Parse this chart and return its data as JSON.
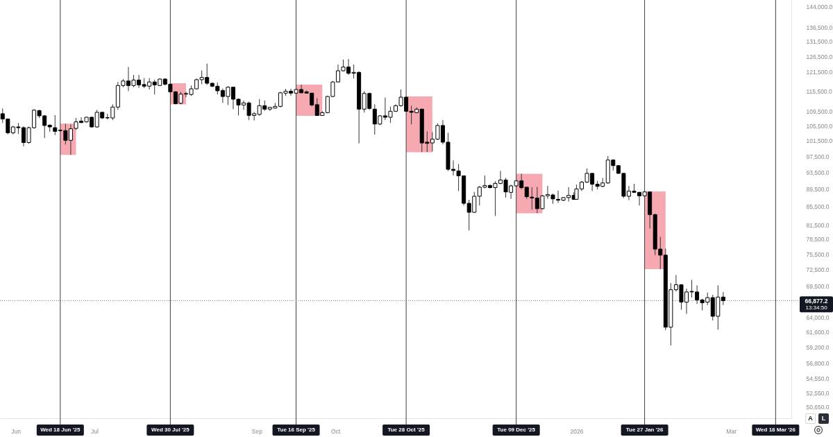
{
  "chart_data": {
    "type": "candlestick",
    "x": [
      "2025-05-27",
      "2025-05-29",
      "2025-05-31",
      "2025-06-02",
      "2025-06-04",
      "2025-06-06",
      "2025-06-08",
      "2025-06-10",
      "2025-06-12",
      "2025-06-14",
      "2025-06-16",
      "2025-06-18",
      "2025-06-20",
      "2025-06-22",
      "2025-06-24",
      "2025-06-26",
      "2025-06-28",
      "2025-06-30",
      "2025-07-02",
      "2025-07-04",
      "2025-07-06",
      "2025-07-08",
      "2025-07-10",
      "2025-07-12",
      "2025-07-14",
      "2025-07-16",
      "2025-07-18",
      "2025-07-20",
      "2025-07-22",
      "2025-07-24",
      "2025-07-26",
      "2025-07-28",
      "2025-07-30",
      "2025-08-01",
      "2025-08-03",
      "2025-08-05",
      "2025-08-07",
      "2025-08-09",
      "2025-08-11",
      "2025-08-13",
      "2025-08-15",
      "2025-08-17",
      "2025-08-19",
      "2025-08-21",
      "2025-08-23",
      "2025-08-25",
      "2025-08-27",
      "2025-08-29",
      "2025-08-31",
      "2025-09-02",
      "2025-09-04",
      "2025-09-06",
      "2025-09-08",
      "2025-09-10",
      "2025-09-12",
      "2025-09-14",
      "2025-09-16",
      "2025-09-18",
      "2025-09-20",
      "2025-09-22",
      "2025-09-24",
      "2025-09-26",
      "2025-09-28",
      "2025-09-30",
      "2025-10-02",
      "2025-10-04",
      "2025-10-06",
      "2025-10-08",
      "2025-10-10",
      "2025-10-12",
      "2025-10-14",
      "2025-10-16",
      "2025-10-18",
      "2025-10-20",
      "2025-10-22",
      "2025-10-24",
      "2025-10-26",
      "2025-10-28",
      "2025-10-30",
      "2025-11-01",
      "2025-11-03",
      "2025-11-05",
      "2025-11-07",
      "2025-11-09",
      "2025-11-11",
      "2025-11-13",
      "2025-11-15",
      "2025-11-17",
      "2025-11-19",
      "2025-11-21",
      "2025-11-23",
      "2025-11-25",
      "2025-11-27",
      "2025-11-29",
      "2025-12-01",
      "2025-12-03",
      "2025-12-05",
      "2025-12-07",
      "2025-12-09",
      "2025-12-11",
      "2025-12-13",
      "2025-12-15",
      "2025-12-17",
      "2025-12-19",
      "2025-12-21",
      "2025-12-23",
      "2025-12-25",
      "2025-12-27",
      "2025-12-29",
      "2025-12-31",
      "2026-01-01",
      "2026-01-03",
      "2026-01-05",
      "2026-01-07",
      "2026-01-09",
      "2026-01-11",
      "2026-01-13",
      "2026-01-15",
      "2026-01-17",
      "2026-01-19",
      "2026-01-21",
      "2026-01-23",
      "2026-01-25",
      "2026-01-27",
      "2026-01-29",
      "2026-01-31",
      "2026-02-02",
      "2026-02-04",
      "2026-02-06",
      "2026-02-08",
      "2026-02-10",
      "2026-02-12",
      "2026-02-14",
      "2026-02-16",
      "2026-02-18",
      "2026-02-20",
      "2026-02-22",
      "2026-02-24",
      "2026-02-26"
    ],
    "ohlc": [
      [
        108900,
        110400,
        106300,
        107400
      ],
      [
        107400,
        107500,
        103200,
        103600
      ],
      [
        103600,
        105500,
        103200,
        105200
      ],
      [
        105200,
        106300,
        103300,
        105000
      ],
      [
        105000,
        105400,
        100000,
        101000
      ],
      [
        101000,
        105300,
        100700,
        105000
      ],
      [
        105000,
        110200,
        104700,
        109900
      ],
      [
        109800,
        110000,
        107700,
        108300
      ],
      [
        108300,
        108500,
        102200,
        105600
      ],
      [
        105700,
        105900,
        103900,
        105200
      ],
      [
        105000,
        108500,
        103000,
        104000
      ],
      [
        104300,
        104500,
        103900,
        104200
      ],
      [
        104200,
        106100,
        100500,
        101600
      ],
      [
        101600,
        105900,
        97800,
        104700
      ],
      [
        104800,
        107700,
        104400,
        106600
      ],
      [
        106800,
        107900,
        106300,
        106400
      ],
      [
        106600,
        108000,
        106400,
        107900
      ],
      [
        107900,
        108100,
        105000,
        105200
      ],
      [
        105200,
        110000,
        105000,
        109300
      ],
      [
        109300,
        109400,
        107400,
        107700
      ],
      [
        107700,
        108900,
        107300,
        107800
      ],
      [
        107700,
        111600,
        107100,
        110800
      ],
      [
        110800,
        118300,
        110000,
        117200
      ],
      [
        117200,
        119200,
        116700,
        118600
      ],
      [
        118600,
        123000,
        115500,
        117200
      ],
      [
        117200,
        120500,
        116700,
        118900
      ],
      [
        118900,
        120500,
        116500,
        117400
      ],
      [
        117500,
        119500,
        116400,
        117000
      ],
      [
        117000,
        119500,
        116000,
        118300
      ],
      [
        118300,
        119000,
        114500,
        117400
      ],
      [
        117200,
        119400,
        117100,
        119200
      ],
      [
        119200,
        119400,
        117200,
        117600
      ],
      [
        117600,
        117900,
        115100,
        115300
      ],
      [
        115300,
        115500,
        111600,
        111800
      ],
      [
        111900,
        115300,
        111600,
        114600
      ],
      [
        114600,
        115300,
        113700,
        114800
      ],
      [
        114500,
        117200,
        114100,
        116200
      ],
      [
        116200,
        119400,
        116000,
        119000
      ],
      [
        119000,
        121900,
        117600,
        119700
      ],
      [
        119700,
        124100,
        117400,
        117900
      ],
      [
        117900,
        118100,
        116700,
        117000
      ],
      [
        117000,
        118100,
        114500,
        115600
      ],
      [
        115700,
        116300,
        112000,
        113900
      ],
      [
        113900,
        117000,
        111400,
        116700
      ],
      [
        116700,
        116800,
        110200,
        113100
      ],
      [
        113100,
        113300,
        108400,
        111400
      ],
      [
        111400,
        112700,
        110000,
        112000
      ],
      [
        112000,
        112400,
        107100,
        108400
      ],
      [
        108400,
        109400,
        107000,
        108900
      ],
      [
        108700,
        113100,
        108300,
        111200
      ],
      [
        111200,
        112700,
        109700,
        110200
      ],
      [
        110200,
        110900,
        109700,
        110700
      ],
      [
        110500,
        112000,
        110400,
        111000
      ],
      [
        111000,
        115300,
        110700,
        115000
      ],
      [
        114900,
        116200,
        114100,
        115500
      ],
      [
        115500,
        116200,
        114100,
        114900
      ],
      [
        114900,
        116100,
        114800,
        116000
      ],
      [
        116000,
        117500,
        114800,
        115000
      ],
      [
        115300,
        115700,
        114800,
        114900
      ],
      [
        114900,
        115000,
        111000,
        111400
      ],
      [
        111500,
        113400,
        108300,
        108400
      ],
      [
        108400,
        109600,
        108300,
        109200
      ],
      [
        109200,
        114100,
        109000,
        113900
      ],
      [
        113900,
        118600,
        113700,
        118300
      ],
      [
        118300,
        123800,
        118100,
        121800
      ],
      [
        121800,
        125400,
        121600,
        123000
      ],
      [
        123000,
        125600,
        120500,
        121000
      ],
      [
        121000,
        123800,
        119400,
        121300
      ],
      [
        121300,
        121600,
        100800,
        110200
      ],
      [
        110200,
        115500,
        109200,
        114800
      ],
      [
        114800,
        115100,
        110000,
        110400
      ],
      [
        110200,
        111600,
        103100,
        106000
      ],
      [
        106000,
        108500,
        105700,
        108300
      ],
      [
        108300,
        113600,
        107100,
        107900
      ],
      [
        107900,
        110900,
        106300,
        109600
      ],
      [
        109600,
        111600,
        109400,
        111200
      ],
      [
        111200,
        116000,
        110900,
        113700
      ],
      [
        113700,
        113900,
        109400,
        109600
      ],
      [
        109600,
        111200,
        105900,
        109300
      ],
      [
        109200,
        110700,
        109000,
        110200
      ],
      [
        110200,
        110400,
        98500,
        100900
      ],
      [
        101100,
        104000,
        98500,
        100800
      ],
      [
        100900,
        103800,
        98700,
        101900
      ],
      [
        101900,
        106200,
        101700,
        105600
      ],
      [
        105600,
        107100,
        100500,
        101100
      ],
      [
        101100,
        103600,
        93800,
        94200
      ],
      [
        94200,
        96400,
        92700,
        93900
      ],
      [
        93800,
        95500,
        89000,
        92600
      ],
      [
        92600,
        92700,
        85700,
        86200
      ],
      [
        86200,
        87000,
        80300,
        84200
      ],
      [
        84200,
        88800,
        84100,
        87800
      ],
      [
        87800,
        90200,
        85700,
        89900
      ],
      [
        89900,
        92700,
        89600,
        90300
      ],
      [
        90300,
        90600,
        89600,
        89800
      ],
      [
        89800,
        91300,
        83400,
        90800
      ],
      [
        90800,
        93800,
        90600,
        91600
      ],
      [
        91600,
        92100,
        87500,
        88800
      ],
      [
        88700,
        90500,
        87200,
        90200
      ],
      [
        90200,
        91600,
        90000,
        91400
      ],
      [
        91400,
        93100,
        89400,
        89800
      ],
      [
        89900,
        90000,
        87200,
        87700
      ],
      [
        87600,
        89900,
        84800,
        87400
      ],
      [
        87400,
        90000,
        84000,
        85000
      ],
      [
        85000,
        88100,
        84800,
        87900
      ],
      [
        87900,
        90200,
        87200,
        88200
      ],
      [
        88100,
        88400,
        86100,
        87200
      ],
      [
        87100,
        89100,
        86300,
        86900
      ],
      [
        86900,
        87600,
        86700,
        87500
      ],
      [
        87500,
        89900,
        86600,
        88000
      ],
      [
        88000,
        88700,
        87000,
        87100
      ],
      [
        87100,
        90500,
        87000,
        89500
      ],
      [
        89500,
        91400,
        89000,
        91100
      ],
      [
        91100,
        94400,
        90900,
        93200
      ],
      [
        93200,
        93300,
        89000,
        90600
      ],
      [
        90600,
        91400,
        89400,
        90100
      ],
      [
        90100,
        92100,
        89900,
        90900
      ],
      [
        90900,
        97500,
        90700,
        96500
      ],
      [
        96500,
        96700,
        93900,
        95100
      ],
      [
        95100,
        95200,
        93100,
        93200
      ],
      [
        93200,
        93300,
        87400,
        87800
      ],
      [
        87800,
        90200,
        86900,
        89000
      ],
      [
        89000,
        90700,
        88600,
        88700
      ],
      [
        88700,
        88800,
        85700,
        87900
      ],
      [
        87900,
        88900,
        87800,
        88800
      ],
      [
        88800,
        88900,
        80700,
        83700
      ],
      [
        83700,
        83900,
        75300,
        76500
      ],
      [
        76500,
        79000,
        72600,
        75300
      ],
      [
        75300,
        76600,
        61900,
        62400
      ],
      [
        62400,
        70000,
        59500,
        68800
      ],
      [
        68800,
        71500,
        68500,
        69700
      ],
      [
        69700,
        69800,
        65300,
        66600
      ],
      [
        66600,
        69000,
        64600,
        68400
      ],
      [
        68500,
        70600,
        67400,
        68400
      ],
      [
        68400,
        69600,
        66300,
        67000
      ],
      [
        67000,
        67200,
        65200,
        66500
      ],
      [
        66600,
        68300,
        66100,
        67400
      ],
      [
        67400,
        67900,
        63500,
        64200
      ],
      [
        64200,
        69600,
        62000,
        67500
      ],
      [
        67500,
        68400,
        66100,
        66877.2
      ]
    ],
    "xlim": [
      "2025-05-26",
      "2026-03-24"
    ],
    "ylim": [
      49200,
      146500
    ],
    "log": true,
    "xticks": [
      {
        "value": "2025-06-01",
        "label": "Jun"
      },
      {
        "value": "2025-07-01",
        "label": "Jul"
      },
      {
        "value": "2025-09-01",
        "label": "Sep"
      },
      {
        "value": "2025-10-01",
        "label": "Oct"
      },
      {
        "value": "2026-01-01",
        "label": "2026"
      },
      {
        "value": "2026-03-01",
        "label": "Mar"
      }
    ],
    "yticks": [
      {
        "value": 144000,
        "label": "144,000.0"
      },
      {
        "value": 136500,
        "label": "136,500.0"
      },
      {
        "value": 131500,
        "label": "131,500.0"
      },
      {
        "value": 126500,
        "label": "126,500.0"
      },
      {
        "value": 121500,
        "label": "121,500.0"
      },
      {
        "value": 115500,
        "label": "115,500.0"
      },
      {
        "value": 109500,
        "label": "109,500.0"
      },
      {
        "value": 105500,
        "label": "105,500.0"
      },
      {
        "value": 101500,
        "label": "101,500.0"
      },
      {
        "value": 97500,
        "label": "97,500.0"
      },
      {
        "value": 93500,
        "label": "93,500.0"
      },
      {
        "value": 89500,
        "label": "89,500.0"
      },
      {
        "value": 85500,
        "label": "85,500.0"
      },
      {
        "value": 81500,
        "label": "81,500.0"
      },
      {
        "value": 78500,
        "label": "78,500.0"
      },
      {
        "value": 75500,
        "label": "75,500.0"
      },
      {
        "value": 72500,
        "label": "72,500.0"
      },
      {
        "value": 69500,
        "label": "69,500.0"
      },
      {
        "value": 64000,
        "label": "64,000.0"
      },
      {
        "value": 61600,
        "label": "61,600.0"
      },
      {
        "value": 59200,
        "label": "59,200.0"
      },
      {
        "value": 56800,
        "label": "56,800.0"
      },
      {
        "value": 54550,
        "label": "54,550.0"
      },
      {
        "value": 52550,
        "label": "52,550.0"
      },
      {
        "value": 50650,
        "label": "50,650.0"
      }
    ],
    "bands": [
      {
        "axis": "x",
        "from": "2025-06-18",
        "to": "2025-06-24",
        "color": "#f7a9b1"
      },
      {
        "axis": "x",
        "from": "2025-07-30",
        "to": "2025-08-05",
        "color": "#f7a9b1"
      },
      {
        "axis": "x",
        "from": "2025-09-16",
        "to": "2025-09-26",
        "color": "#f7a9b1"
      },
      {
        "axis": "x",
        "from": "2025-10-28",
        "to": "2025-11-07",
        "color": "#f7a9b1"
      },
      {
        "axis": "x",
        "from": "2025-12-09",
        "to": "2025-12-19",
        "color": "#f7a9b1"
      },
      {
        "axis": "x",
        "from": "2026-01-27",
        "to": "2026-02-04",
        "color": "#f7a9b1"
      }
    ],
    "ref_lines": [
      {
        "axis": "x",
        "value": "2025-06-18",
        "label": "Wed 18 Jun '25",
        "color": "#3c3c3c"
      },
      {
        "axis": "x",
        "value": "2025-07-30",
        "label": "Wed 30 Jul '25",
        "color": "#3c3c3c"
      },
      {
        "axis": "x",
        "value": "2025-09-16",
        "label": "Tue 16 Sep '25",
        "color": "#3c3c3c"
      },
      {
        "axis": "x",
        "value": "2025-10-28",
        "label": "Tue 28 Oct '25",
        "color": "#3c3c3c"
      },
      {
        "axis": "x",
        "value": "2025-12-09",
        "label": "Tue 09 Dec '25",
        "color": "#3c3c3c"
      },
      {
        "axis": "x",
        "value": "2026-01-27",
        "label": "Tue 27 Jan '26",
        "color": "#3c3c3c"
      },
      {
        "axis": "x",
        "value": "2026-03-18",
        "label": "Wed 18 Mar '26",
        "color": "#3c3c3c"
      },
      {
        "axis": "y",
        "value": 66877.2,
        "label": "66,877.2",
        "color": "#777777",
        "line_style": "dotted"
      }
    ],
    "annotations": [
      "13:34:50",
      "A",
      "L"
    ]
  }
}
